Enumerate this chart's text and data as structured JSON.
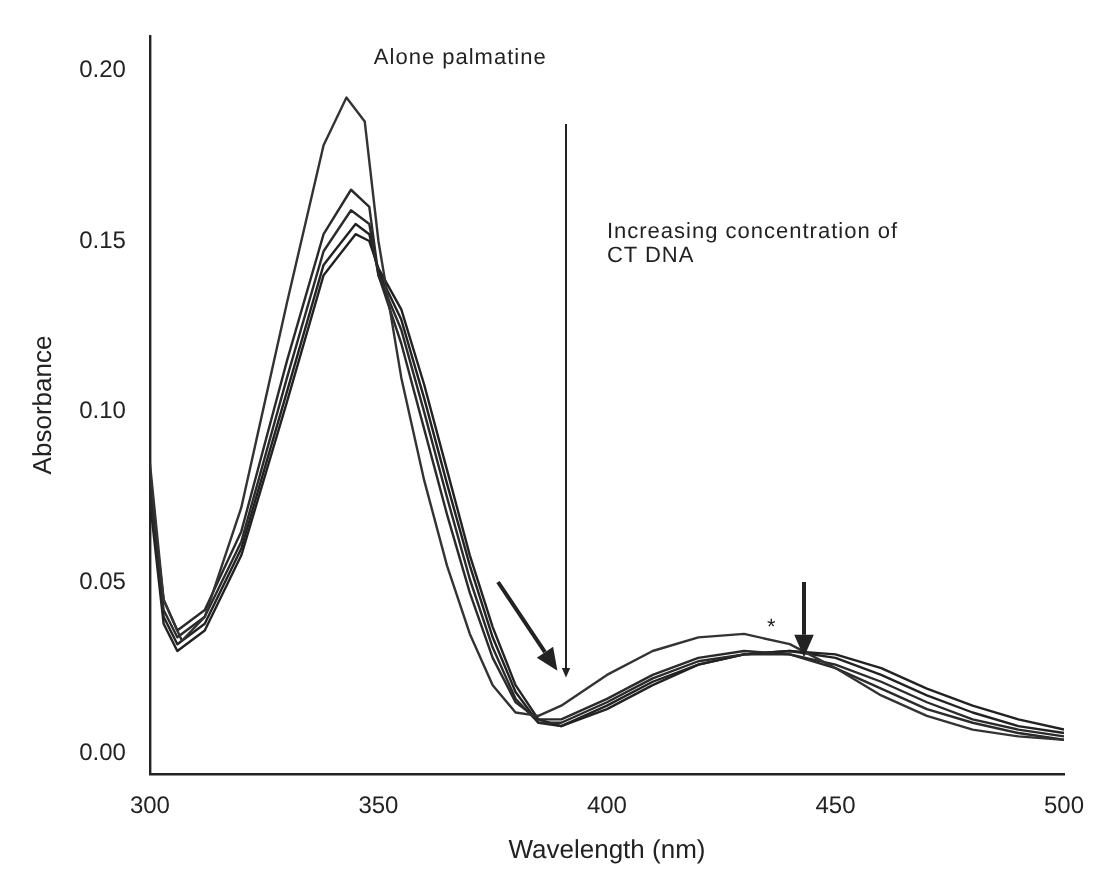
{
  "chart_data": {
    "type": "line",
    "xlabel": "Wavelength (nm)",
    "ylabel": "Absorbance",
    "xlim": [
      300,
      500
    ],
    "ylim": [
      -0.006,
      0.21
    ],
    "xticks": [
      300,
      350,
      400,
      450,
      500
    ],
    "yticks": [
      {
        "value": 0,
        "label": "0.00"
      },
      {
        "value": 0.05,
        "label": "0.05"
      },
      {
        "value": 0.1,
        "label": "0.10"
      },
      {
        "value": 0.15,
        "label": "0.15"
      },
      {
        "value": 0.2,
        "label": "0.20"
      }
    ],
    "grid": false,
    "legend": false,
    "marker": "none",
    "line_style": "solid",
    "annotations": [
      "Alone palmatine",
      "Increasing concentration of CT DNA",
      "*"
    ],
    "series": [
      {
        "color": "#333333",
        "x": [
          300,
          303,
          307,
          312,
          320,
          330,
          338,
          343,
          347,
          350,
          355,
          360,
          365,
          370,
          375,
          380,
          385,
          390,
          400,
          410,
          420,
          430,
          440,
          450,
          460,
          470,
          480,
          490,
          500
        ],
        "values": [
          0.085,
          0.045,
          0.033,
          0.04,
          0.072,
          0.132,
          0.178,
          0.192,
          0.185,
          0.15,
          0.11,
          0.08,
          0.055,
          0.035,
          0.02,
          0.012,
          0.011,
          0.014,
          0.023,
          0.03,
          0.034,
          0.035,
          0.032,
          0.025,
          0.017,
          0.011,
          0.007,
          0.005,
          0.004
        ]
      },
      {
        "color": "#2a2a2a",
        "x": [
          300,
          303,
          306,
          312,
          320,
          330,
          338,
          344,
          348,
          350,
          355,
          360,
          365,
          370,
          375,
          380,
          385,
          390,
          400,
          410,
          420,
          430,
          440,
          450,
          460,
          470,
          480,
          490,
          500
        ],
        "values": [
          0.08,
          0.045,
          0.036,
          0.042,
          0.065,
          0.115,
          0.152,
          0.165,
          0.16,
          0.14,
          0.12,
          0.095,
          0.07,
          0.047,
          0.028,
          0.015,
          0.01,
          0.01,
          0.016,
          0.023,
          0.028,
          0.03,
          0.029,
          0.025,
          0.019,
          0.013,
          0.009,
          0.006,
          0.004
        ]
      },
      {
        "color": "#2a2a2a",
        "x": [
          300,
          303,
          306,
          312,
          320,
          330,
          338,
          344,
          348,
          350,
          355,
          360,
          365,
          370,
          375,
          380,
          385,
          390,
          400,
          410,
          420,
          430,
          440,
          450,
          460,
          470,
          480,
          490,
          500
        ],
        "values": [
          0.078,
          0.042,
          0.034,
          0.04,
          0.062,
          0.11,
          0.147,
          0.159,
          0.155,
          0.14,
          0.124,
          0.1,
          0.075,
          0.051,
          0.031,
          0.016,
          0.009,
          0.009,
          0.015,
          0.022,
          0.027,
          0.029,
          0.029,
          0.026,
          0.021,
          0.015,
          0.01,
          0.007,
          0.005
        ]
      },
      {
        "color": "#222222",
        "x": [
          300,
          303,
          306,
          312,
          320,
          330,
          338,
          345,
          348,
          350,
          355,
          360,
          365,
          370,
          375,
          380,
          385,
          390,
          400,
          410,
          420,
          430,
          440,
          450,
          460,
          470,
          480,
          490,
          500
        ],
        "values": [
          0.076,
          0.04,
          0.032,
          0.038,
          0.06,
          0.106,
          0.143,
          0.155,
          0.152,
          0.141,
          0.127,
          0.104,
          0.079,
          0.055,
          0.034,
          0.018,
          0.009,
          0.008,
          0.014,
          0.021,
          0.026,
          0.029,
          0.03,
          0.028,
          0.023,
          0.017,
          0.012,
          0.008,
          0.006
        ]
      },
      {
        "color": "#222222",
        "x": [
          300,
          303,
          306,
          312,
          320,
          330,
          338,
          345,
          348,
          350,
          355,
          360,
          365,
          370,
          375,
          380,
          385,
          390,
          400,
          410,
          420,
          430,
          440,
          450,
          460,
          470,
          480,
          490,
          500
        ],
        "values": [
          0.074,
          0.038,
          0.03,
          0.036,
          0.058,
          0.103,
          0.14,
          0.152,
          0.15,
          0.142,
          0.13,
          0.108,
          0.083,
          0.058,
          0.037,
          0.02,
          0.01,
          0.008,
          0.013,
          0.02,
          0.026,
          0.029,
          0.03,
          0.029,
          0.025,
          0.019,
          0.014,
          0.01,
          0.007
        ]
      }
    ]
  }
}
